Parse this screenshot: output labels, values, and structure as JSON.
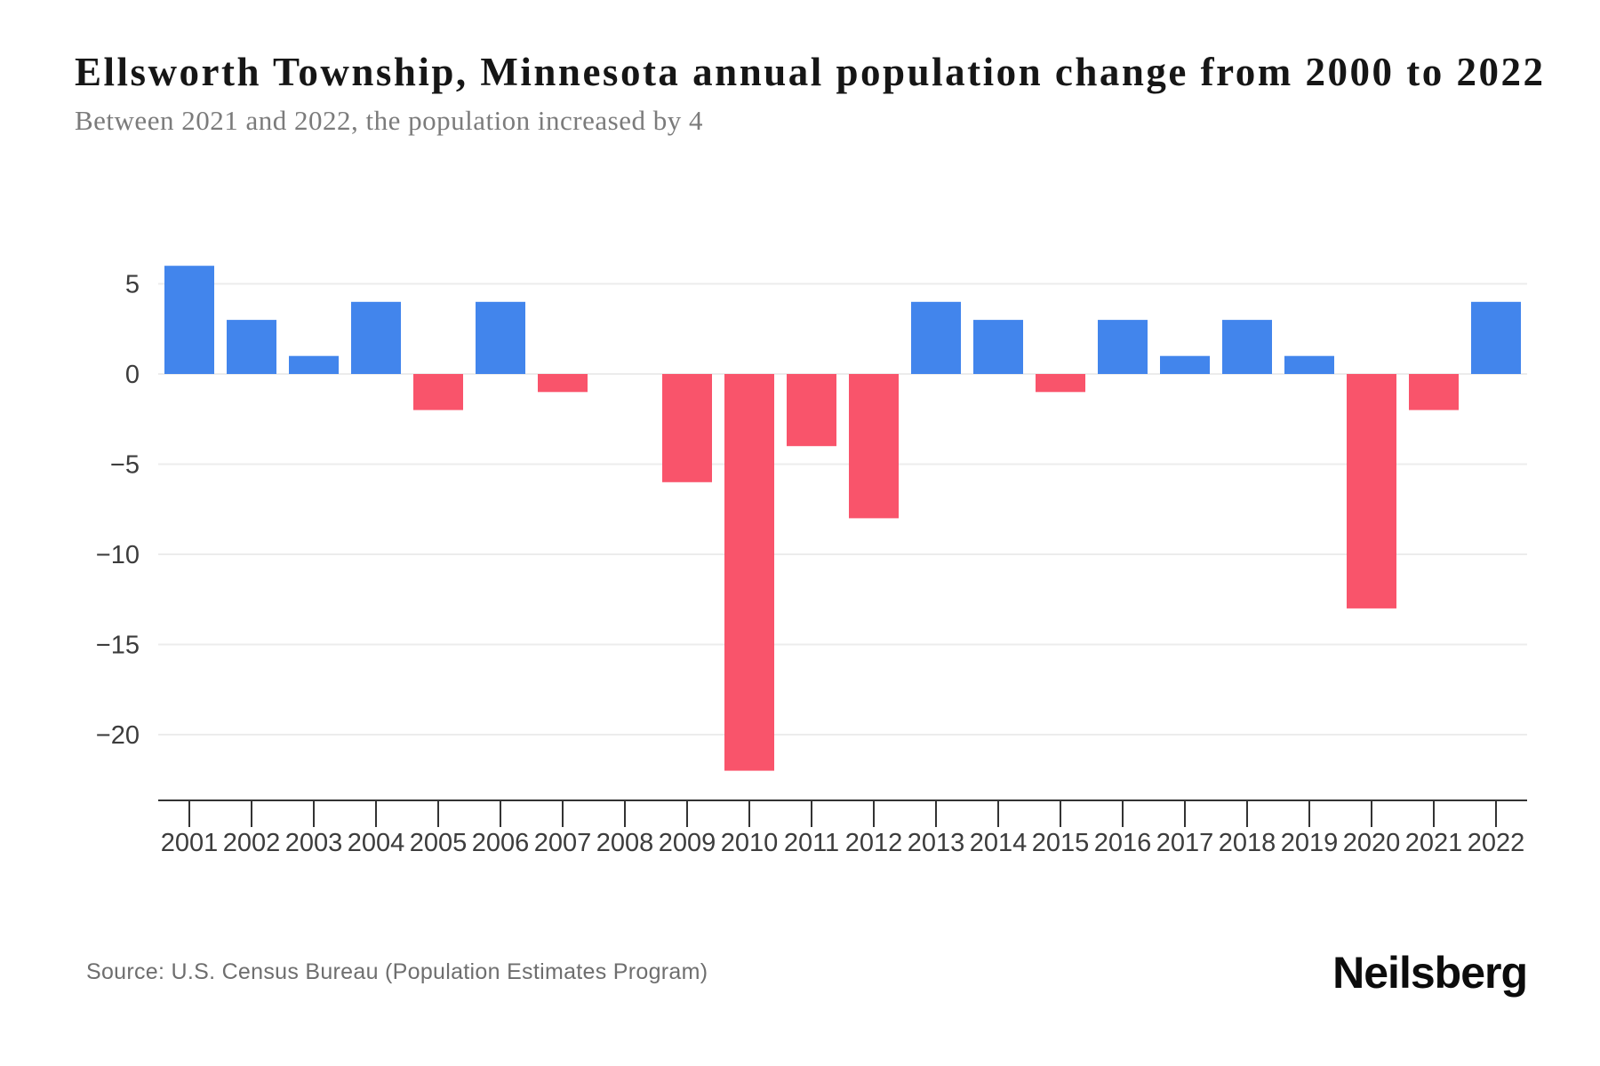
{
  "chart_data": {
    "type": "bar",
    "title": "Ellsworth Township, Minnesota annual population change from 2000 to 2022",
    "subtitle": "Between 2021 and 2022, the population increased by 4",
    "categories": [
      "2001",
      "2002",
      "2003",
      "2004",
      "2005",
      "2006",
      "2007",
      "2008",
      "2009",
      "2010",
      "2011",
      "2012",
      "2013",
      "2014",
      "2015",
      "2016",
      "2017",
      "2018",
      "2019",
      "2020",
      "2021",
      "2022"
    ],
    "values": [
      6,
      3,
      1,
      4,
      -2,
      4,
      -1,
      0,
      -6,
      -22,
      -4,
      -8,
      4,
      3,
      -1,
      3,
      1,
      3,
      1,
      -13,
      -2,
      4
    ],
    "xlabel": "",
    "ylabel": "",
    "yticks": [
      5,
      0,
      -5,
      -10,
      -15,
      -20
    ],
    "ytick_labels": [
      "5",
      "0",
      "−5",
      "−10",
      "−15",
      "−20"
    ],
    "ylim": [
      -23.6,
      8.2
    ],
    "grid": true,
    "legend": false,
    "colors": {
      "positive_bar": "#4285EC",
      "negative_bar": "#F9546B",
      "gridline": "#ECECEC",
      "axis": "#333333",
      "tick_label": "#3C3C3C"
    }
  },
  "footer": {
    "source": "Source: U.S. Census Bureau (Population Estimates Program)",
    "brand": "Neilsberg"
  }
}
